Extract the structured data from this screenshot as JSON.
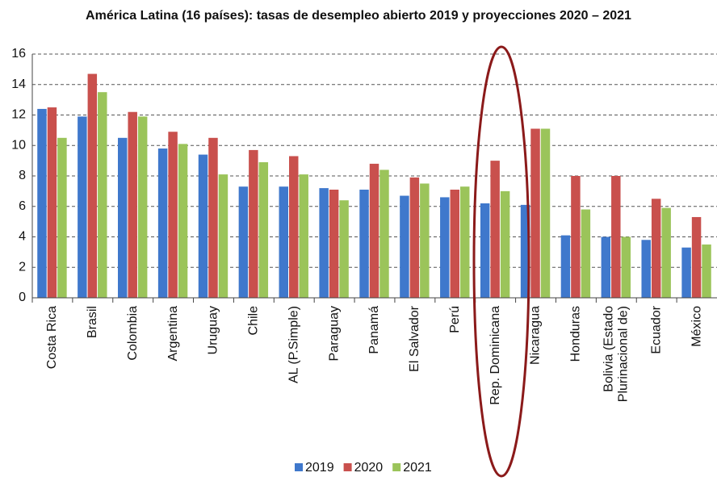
{
  "chart_data": {
    "type": "bar",
    "title": "América Latina (16 países): tasas de desempleo abierto 2019 y proyecciones 2020 – 2021",
    "categories": [
      "Costa Rica",
      "Brasil",
      "Colombia",
      "Argentina",
      "Uruguay",
      "Chile",
      "AL (P.Simple)",
      "Paraguay",
      "Panamá",
      "El Salvador",
      "Perú",
      "Rep. Dominicana",
      "Nicaragua",
      "Honduras",
      "Bolivia (Estado Plurinacional de)",
      "Ecuador",
      "México"
    ],
    "series": [
      {
        "name": "2019",
        "color": "#3f78cc",
        "values": [
          12.4,
          11.9,
          10.5,
          9.8,
          9.4,
          7.3,
          7.3,
          7.2,
          7.1,
          6.7,
          6.6,
          6.2,
          6.1,
          4.1,
          4.0,
          3.8,
          3.3
        ]
      },
      {
        "name": "2020",
        "color": "#c9504d",
        "values": [
          12.5,
          14.7,
          12.2,
          10.9,
          10.5,
          9.7,
          9.3,
          7.1,
          8.8,
          7.9,
          7.1,
          9.0,
          11.1,
          8.0,
          8.0,
          6.5,
          5.3
        ]
      },
      {
        "name": "2021",
        "color": "#9bc45a",
        "values": [
          10.5,
          13.5,
          11.9,
          10.1,
          8.1,
          8.9,
          8.1,
          6.4,
          8.4,
          7.5,
          7.3,
          7.0,
          11.1,
          5.8,
          4.0,
          5.9,
          3.5
        ]
      }
    ],
    "ylim": [
      0,
      16
    ],
    "yticks": [
      0,
      2,
      4,
      6,
      8,
      10,
      12,
      14,
      16
    ],
    "grid": true,
    "legend": "bottom"
  }
}
